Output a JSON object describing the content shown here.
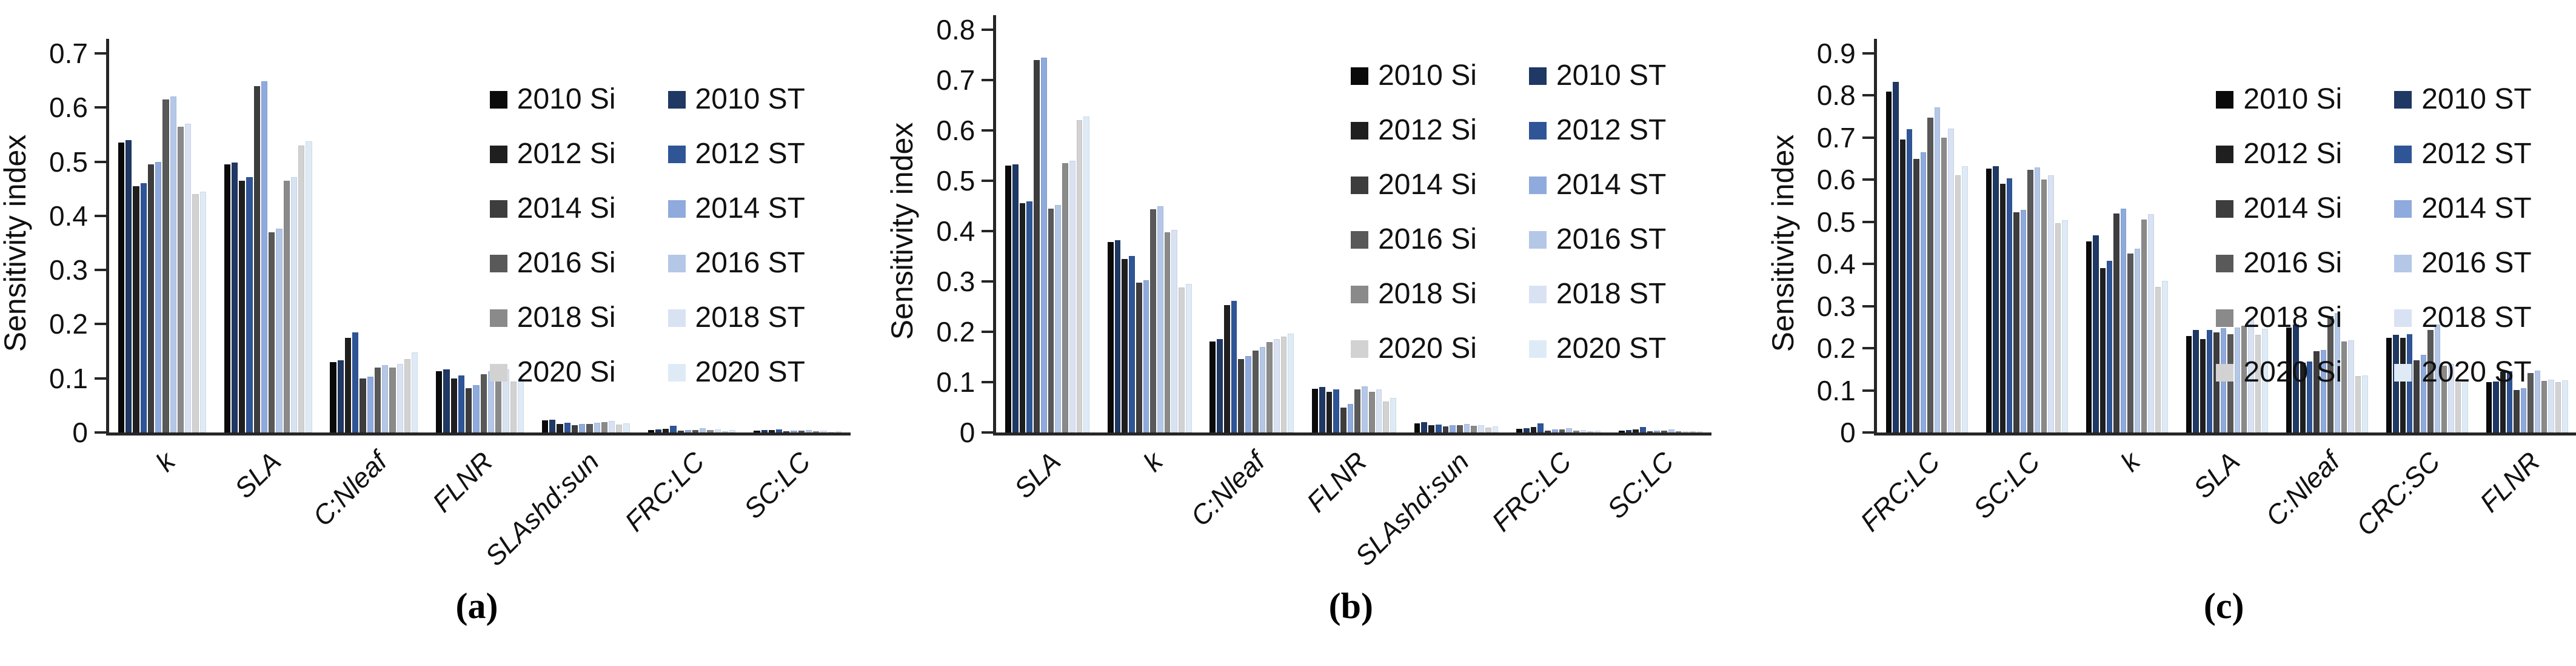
{
  "figure": {
    "background": "#ffffff",
    "axis_color": "#262626",
    "y_axis_title": "Sensitivity index"
  },
  "legend": {
    "position": "top-right",
    "columns": [
      [
        {
          "label": "2010 Si",
          "color": "#0a0a0a"
        },
        {
          "label": "2012 Si",
          "color": "#1f1f1f"
        },
        {
          "label": "2014 Si",
          "color": "#3d3d3d"
        },
        {
          "label": "2016 Si",
          "color": "#595959"
        },
        {
          "label": "2018 Si",
          "color": "#8a8a8a"
        },
        {
          "label": "2020 Si",
          "color": "#d2d2d2"
        }
      ],
      [
        {
          "label": "2010 ST",
          "color": "#1f3864"
        },
        {
          "label": "2012 ST",
          "color": "#2f5597"
        },
        {
          "label": "2014 ST",
          "color": "#8faadc"
        },
        {
          "label": "2016 ST",
          "color": "#b4c7e7"
        },
        {
          "label": "2018 ST",
          "color": "#d9e2f3"
        },
        {
          "label": "2020 ST",
          "color": "#deebf7"
        }
      ]
    ]
  },
  "chart_data": [
    {
      "id": "a",
      "type": "bar",
      "caption": "(a)",
      "ylabel": "Sensitivity index",
      "ylim": [
        0,
        0.7
      ],
      "yticks": [
        "0",
        "0.1",
        "0.2",
        "0.3",
        "0.4",
        "0.5",
        "0.6",
        "0.7"
      ],
      "grid": false,
      "legend_position": "top-right",
      "categories": [
        "k",
        "SLA",
        "C:Nleaf",
        "FLNR",
        "SLAshd:sun",
        "FRC:LC",
        "SC:LC"
      ],
      "series": [
        {
          "name": "2010 Si",
          "color": "#0a0a0a",
          "values": [
            0.535,
            0.495,
            0.13,
            0.113,
            0.022,
            0.005,
            0.003
          ]
        },
        {
          "name": "2010 ST",
          "color": "#1f3864",
          "values": [
            0.54,
            0.498,
            0.133,
            0.116,
            0.023,
            0.006,
            0.004
          ]
        },
        {
          "name": "2012 Si",
          "color": "#1f1f1f",
          "values": [
            0.455,
            0.465,
            0.175,
            0.1,
            0.016,
            0.007,
            0.004
          ]
        },
        {
          "name": "2012 ST",
          "color": "#2f5597",
          "values": [
            0.46,
            0.472,
            0.185,
            0.105,
            0.018,
            0.012,
            0.006
          ]
        },
        {
          "name": "2014 Si",
          "color": "#3d3d3d",
          "values": [
            0.495,
            0.64,
            0.1,
            0.082,
            0.014,
            0.003,
            0.002
          ]
        },
        {
          "name": "2014 ST",
          "color": "#8faadc",
          "values": [
            0.5,
            0.648,
            0.103,
            0.087,
            0.016,
            0.005,
            0.003
          ]
        },
        {
          "name": "2016 Si",
          "color": "#595959",
          "values": [
            0.615,
            0.37,
            0.12,
            0.107,
            0.016,
            0.005,
            0.003
          ]
        },
        {
          "name": "2016 ST",
          "color": "#b4c7e7",
          "values": [
            0.62,
            0.376,
            0.124,
            0.113,
            0.018,
            0.008,
            0.005
          ]
        },
        {
          "name": "2018 Si",
          "color": "#8a8a8a",
          "values": [
            0.565,
            0.465,
            0.12,
            0.112,
            0.019,
            0.004,
            0.002
          ]
        },
        {
          "name": "2018 ST",
          "color": "#d9e2f3",
          "values": [
            0.57,
            0.472,
            0.127,
            0.117,
            0.021,
            0.006,
            0.003
          ]
        },
        {
          "name": "2020 Si",
          "color": "#d2d2d2",
          "values": [
            0.44,
            0.53,
            0.136,
            0.094,
            0.015,
            0.002,
            0.001
          ]
        },
        {
          "name": "2020 ST",
          "color": "#deebf7",
          "values": [
            0.445,
            0.538,
            0.148,
            0.1,
            0.017,
            0.004,
            0.002
          ]
        }
      ]
    },
    {
      "id": "b",
      "type": "bar",
      "caption": "(b)",
      "ylabel": "Sensitivity index",
      "ylim": [
        0,
        0.8
      ],
      "yticks": [
        "0",
        "0.1",
        "0.2",
        "0.3",
        "0.4",
        "0.5",
        "0.6",
        "0.7",
        "0.8"
      ],
      "grid": false,
      "legend_position": "top-right",
      "categories": [
        "SLA",
        "k",
        "C:Nleaf",
        "FLNR",
        "SLAshd:sun",
        "FRC:LC",
        "SC:LC"
      ],
      "series": [
        {
          "name": "2010 Si",
          "color": "#0a0a0a",
          "values": [
            0.53,
            0.378,
            0.181,
            0.087,
            0.018,
            0.007,
            0.004
          ]
        },
        {
          "name": "2010 ST",
          "color": "#1f3864",
          "values": [
            0.532,
            0.382,
            0.185,
            0.09,
            0.02,
            0.008,
            0.005
          ]
        },
        {
          "name": "2012 Si",
          "color": "#1f1f1f",
          "values": [
            0.455,
            0.345,
            0.253,
            0.081,
            0.014,
            0.011,
            0.006
          ]
        },
        {
          "name": "2012 ST",
          "color": "#2f5597",
          "values": [
            0.459,
            0.351,
            0.262,
            0.086,
            0.016,
            0.018,
            0.011
          ]
        },
        {
          "name": "2014 Si",
          "color": "#3d3d3d",
          "values": [
            0.74,
            0.298,
            0.146,
            0.05,
            0.012,
            0.004,
            0.003
          ]
        },
        {
          "name": "2014 ST",
          "color": "#8faadc",
          "values": [
            0.745,
            0.303,
            0.152,
            0.057,
            0.014,
            0.006,
            0.004
          ]
        },
        {
          "name": "2016 Si",
          "color": "#595959",
          "values": [
            0.445,
            0.443,
            0.163,
            0.086,
            0.014,
            0.006,
            0.004
          ]
        },
        {
          "name": "2016 ST",
          "color": "#b4c7e7",
          "values": [
            0.452,
            0.449,
            0.17,
            0.092,
            0.017,
            0.008,
            0.006
          ]
        },
        {
          "name": "2018 Si",
          "color": "#8a8a8a",
          "values": [
            0.535,
            0.398,
            0.18,
            0.081,
            0.013,
            0.004,
            0.002
          ]
        },
        {
          "name": "2018 ST",
          "color": "#d9e2f3",
          "values": [
            0.54,
            0.403,
            0.185,
            0.086,
            0.015,
            0.005,
            0.003
          ]
        },
        {
          "name": "2020 Si",
          "color": "#d2d2d2",
          "values": [
            0.62,
            0.288,
            0.19,
            0.062,
            0.01,
            0.003,
            0.002
          ]
        },
        {
          "name": "2020 ST",
          "color": "#deebf7",
          "values": [
            0.628,
            0.295,
            0.197,
            0.069,
            0.012,
            0.004,
            0.003
          ]
        }
      ]
    },
    {
      "id": "c",
      "type": "bar",
      "caption": "(c)",
      "ylabel": "Sensitivity index",
      "ylim": [
        0,
        0.9
      ],
      "yticks": [
        "0",
        "0.1",
        "0.2",
        "0.3",
        "0.4",
        "0.5",
        "0.6",
        "0.7",
        "0.8",
        "0.9"
      ],
      "grid": false,
      "legend_position": "top-right",
      "categories": [
        "FRC:LC",
        "SC:LC",
        "k",
        "SLA",
        "C:Nleaf",
        "CRC:SC",
        "FLNR"
      ],
      "series": [
        {
          "name": "2010 Si",
          "color": "#0a0a0a",
          "values": [
            0.81,
            0.626,
            0.453,
            0.229,
            0.249,
            0.225,
            0.119
          ]
        },
        {
          "name": "2010 ST",
          "color": "#1f3864",
          "values": [
            0.833,
            0.632,
            0.468,
            0.244,
            0.256,
            0.232,
            0.121
          ]
        },
        {
          "name": "2012 Si",
          "color": "#1f1f1f",
          "values": [
            0.695,
            0.591,
            0.39,
            0.222,
            0.165,
            0.225,
            0.144
          ]
        },
        {
          "name": "2012 ST",
          "color": "#2f5597",
          "values": [
            0.72,
            0.603,
            0.408,
            0.243,
            0.168,
            0.233,
            0.146
          ]
        },
        {
          "name": "2014 Si",
          "color": "#3d3d3d",
          "values": [
            0.65,
            0.523,
            0.52,
            0.237,
            0.193,
            0.171,
            0.101
          ]
        },
        {
          "name": "2014 ST",
          "color": "#8faadc",
          "values": [
            0.666,
            0.529,
            0.532,
            0.248,
            0.196,
            0.184,
            0.105
          ]
        },
        {
          "name": "2016 Si",
          "color": "#595959",
          "values": [
            0.748,
            0.623,
            0.425,
            0.233,
            0.277,
            0.244,
            0.141
          ]
        },
        {
          "name": "2016 ST",
          "color": "#b4c7e7",
          "values": [
            0.772,
            0.629,
            0.436,
            0.249,
            0.283,
            0.256,
            0.147
          ]
        },
        {
          "name": "2018 Si",
          "color": "#8a8a8a",
          "values": [
            0.7,
            0.6,
            0.505,
            0.254,
            0.216,
            0.158,
            0.123
          ]
        },
        {
          "name": "2018 ST",
          "color": "#d9e2f3",
          "values": [
            0.722,
            0.61,
            0.519,
            0.27,
            0.219,
            0.163,
            0.125
          ]
        },
        {
          "name": "2020 Si",
          "color": "#d2d2d2",
          "values": [
            0.61,
            0.497,
            0.345,
            0.232,
            0.134,
            0.119,
            0.119
          ]
        },
        {
          "name": "2020 ST",
          "color": "#deebf7",
          "values": [
            0.632,
            0.504,
            0.36,
            0.246,
            0.136,
            0.125,
            0.124
          ]
        }
      ]
    }
  ]
}
